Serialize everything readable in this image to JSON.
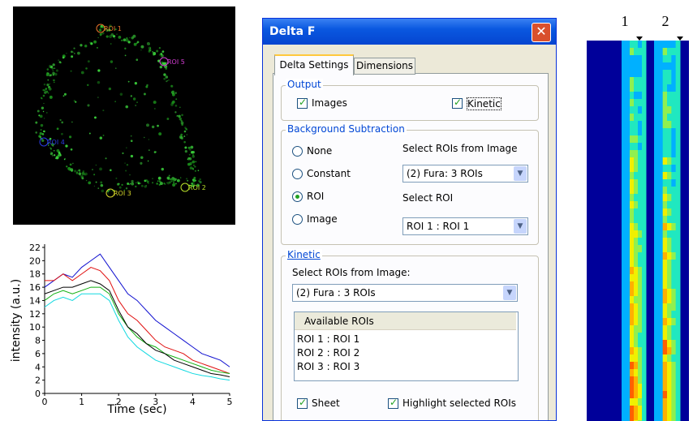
{
  "image": {
    "roi_labels": [
      {
        "text": "ROI 1",
        "color": "#e8742a"
      },
      {
        "text": "ROI 5",
        "color": "#d23cd2"
      },
      {
        "text": "ROI 4",
        "color": "#2a3ce0"
      },
      {
        "text": "ROI 3",
        "color": "#d8d82a"
      },
      {
        "text": "ROI 2",
        "color": "#b8e02a"
      }
    ]
  },
  "chart_data": {
    "type": "line",
    "xlabel": "Time (sec)",
    "ylabel": "intensity (a.u.)",
    "x": [
      0,
      0.25,
      0.5,
      0.75,
      1,
      1.25,
      1.5,
      1.75,
      2,
      2.25,
      2.5,
      2.75,
      3,
      3.25,
      3.5,
      3.75,
      4,
      4.25,
      4.5,
      4.75,
      5
    ],
    "series": [
      {
        "color": "#1010d0",
        "values": [
          16,
          17,
          18,
          17.5,
          19,
          20,
          21,
          19,
          17,
          15,
          14,
          12.5,
          11,
          10,
          9,
          8,
          7,
          6,
          5.5,
          5,
          4
        ]
      },
      {
        "color": "#e01010",
        "values": [
          17,
          17,
          18,
          17,
          18,
          19,
          18.5,
          17,
          14,
          12,
          11,
          9.5,
          8,
          7,
          6.5,
          6,
          5,
          4.5,
          4,
          3.5,
          3
        ]
      },
      {
        "color": "#10b010",
        "values": [
          14,
          15,
          15.5,
          15,
          15.5,
          16,
          16,
          15,
          12,
          10,
          8.5,
          7.5,
          7,
          6,
          5.5,
          5,
          4.5,
          4,
          3.5,
          3.2,
          3
        ]
      },
      {
        "color": "#000000",
        "values": [
          15,
          15.5,
          16,
          16,
          16.5,
          17,
          16.5,
          15.5,
          12.5,
          10,
          9,
          7.5,
          6.5,
          6,
          5,
          4.5,
          4,
          3.5,
          3,
          2.8,
          2.5
        ]
      },
      {
        "color": "#10d8e0",
        "values": [
          13,
          14,
          14.5,
          14,
          15,
          15,
          15,
          14,
          11,
          8.5,
          7,
          6,
          5,
          4.5,
          4,
          3.5,
          3,
          2.7,
          2.5,
          2.2,
          2
        ]
      }
    ],
    "xlim": [
      0,
      5
    ],
    "ylim": [
      0,
      22
    ],
    "xticks": [
      0,
      1,
      2,
      3,
      4,
      5
    ],
    "yticks": [
      0,
      2,
      4,
      6,
      8,
      10,
      12,
      14,
      16,
      18,
      20,
      22
    ]
  },
  "dialog": {
    "title": "Delta F",
    "tabs": [
      "Delta Settings",
      "Dimensions"
    ],
    "output": {
      "title": "Output",
      "images": {
        "label": "Images",
        "checked": true
      },
      "kinetic": {
        "label": "Kinetic",
        "checked": true
      }
    },
    "background": {
      "title": "Background Subtraction",
      "options": [
        "None",
        "Constant",
        "ROI",
        "Image"
      ],
      "selected": 2,
      "rois_label": "Select ROIs from Image",
      "rois_value": "(2) Fura: 3 ROIs",
      "roi_label": "Select ROI",
      "roi_value": "ROI 1 : ROI 1"
    },
    "kinetic": {
      "title": "Kinetic",
      "rois_label": "Select ROIs from Image:",
      "rois_value": "(2) Fura : 3 ROIs",
      "list_header": "Available ROIs",
      "list": [
        "ROI 1 : ROI 1",
        "ROI 2 : ROI 2",
        "ROI 3 : ROI 3"
      ],
      "sheet": {
        "label": "Sheet",
        "checked": true
      },
      "highlight": {
        "label": "Highlight selected ROIs",
        "checked": true
      }
    }
  },
  "kymograph": {
    "labels": [
      "1",
      "2"
    ]
  }
}
